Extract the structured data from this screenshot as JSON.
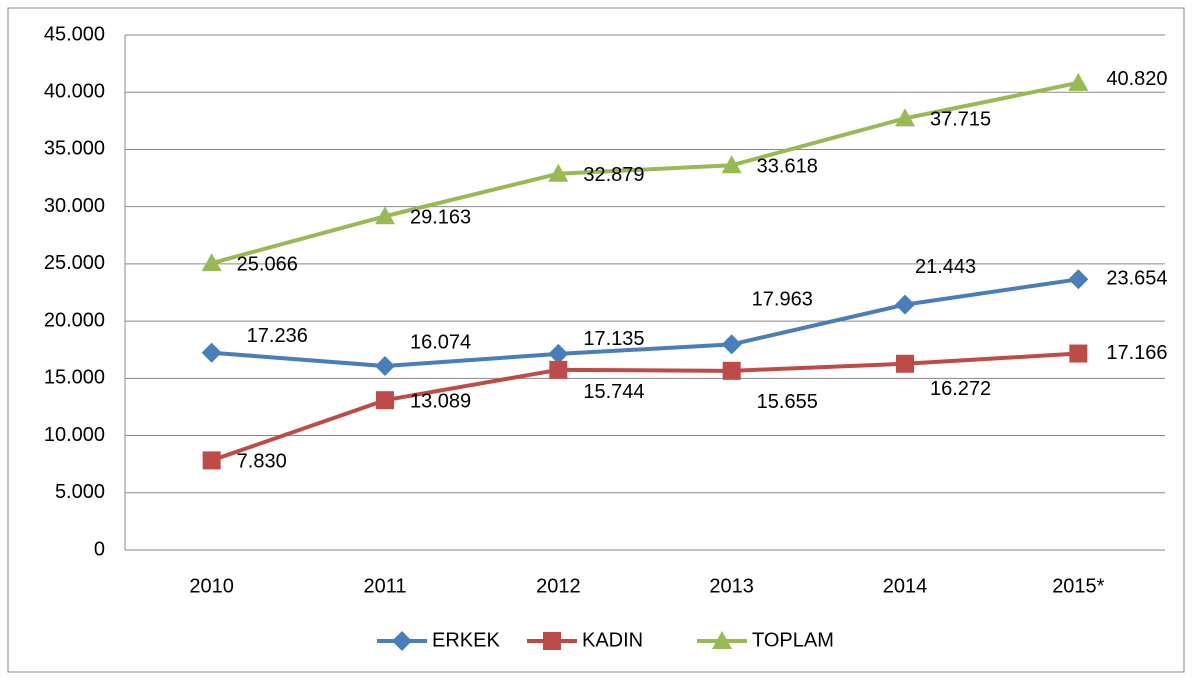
{
  "chart_data": {
    "type": "line",
    "categories": [
      "2010",
      "2011",
      "2012",
      "2013",
      "2014",
      "2015*"
    ],
    "series": [
      {
        "name": "ERKEK",
        "color": "#4a7ebb",
        "values": [
          17236,
          16074,
          17135,
          17963,
          21443,
          23654
        ],
        "value_labels": [
          "17.236",
          "16.074",
          "17.135",
          "17.963",
          "21.443",
          "23.654"
        ]
      },
      {
        "name": "KADIN",
        "color": "#be4b48",
        "values": [
          7830,
          13089,
          15744,
          15655,
          16272,
          17166
        ],
        "value_labels": [
          "7.830",
          "13.089",
          "15.744",
          "15.655",
          "16.272",
          "17.166"
        ]
      },
      {
        "name": "TOPLAM",
        "color": "#98b954",
        "values": [
          25066,
          29163,
          32879,
          33618,
          37715,
          40820
        ],
        "value_labels": [
          "25.066",
          "29.163",
          "32.879",
          "33.618",
          "37.715",
          "40.820"
        ]
      }
    ],
    "ylim": [
      0,
      45000
    ],
    "yticks": [
      0,
      {
        "value": 5000,
        "label": "5.000"
      },
      {
        "value": 10000,
        "label": "10.000"
      },
      {
        "value": 15000,
        "label": "15.000"
      },
      {
        "value": 20000,
        "label": "20.000"
      },
      {
        "value": 25000,
        "label": "25.000"
      },
      {
        "value": 30000,
        "label": "30.000"
      },
      {
        "value": 35000,
        "label": "35.000"
      },
      {
        "value": 40000,
        "label": "40.000"
      },
      {
        "value": 45000,
        "label": "45.000"
      }
    ],
    "grid": true,
    "legend": "bottom"
  }
}
